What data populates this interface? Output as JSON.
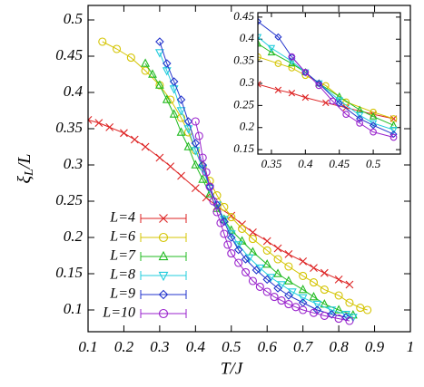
{
  "chart_data": [
    {
      "type": "line",
      "xlabel": "T/J",
      "ylabel": [
        "ξ",
        "L",
        "/L"
      ],
      "xlim": [
        0.1,
        1
      ],
      "ylim": [
        0.07,
        0.52
      ],
      "xticks": [
        0.1,
        0.2,
        0.3,
        0.4,
        0.5,
        0.6,
        0.7,
        0.8,
        0.9,
        1
      ],
      "yticks": [
        0.1,
        0.15,
        0.2,
        0.25,
        0.3,
        0.35,
        0.4,
        0.45,
        0.5
      ],
      "legend": "lower left",
      "series": [
        {
          "name": "L=4",
          "color": "#dd2222",
          "marker": "x",
          "x": [
            0.1,
            0.13,
            0.16,
            0.2,
            0.23,
            0.26,
            0.3,
            0.33,
            0.36,
            0.4,
            0.43,
            0.46,
            0.5,
            0.53,
            0.56,
            0.6,
            0.63,
            0.66,
            0.7,
            0.73,
            0.76,
            0.8,
            0.83
          ],
          "values": [
            0.362,
            0.358,
            0.352,
            0.344,
            0.335,
            0.325,
            0.31,
            0.298,
            0.285,
            0.268,
            0.255,
            0.243,
            0.23,
            0.218,
            0.207,
            0.195,
            0.185,
            0.177,
            0.167,
            0.158,
            0.151,
            0.142,
            0.135
          ]
        },
        {
          "name": "L=6",
          "color": "#d4c400",
          "marker": "circle",
          "x": [
            0.14,
            0.18,
            0.22,
            0.26,
            0.3,
            0.33,
            0.36,
            0.38,
            0.4,
            0.42,
            0.44,
            0.46,
            0.48,
            0.5,
            0.53,
            0.56,
            0.6,
            0.63,
            0.66,
            0.7,
            0.73,
            0.76,
            0.8,
            0.83,
            0.86,
            0.88
          ],
          "values": [
            0.47,
            0.46,
            0.448,
            0.43,
            0.41,
            0.39,
            0.365,
            0.345,
            0.32,
            0.298,
            0.278,
            0.258,
            0.242,
            0.228,
            0.212,
            0.198,
            0.182,
            0.17,
            0.16,
            0.147,
            0.138,
            0.128,
            0.12,
            0.11,
            0.103,
            0.1
          ]
        },
        {
          "name": "L=7",
          "color": "#22bb22",
          "marker": "triangle-up",
          "x": [
            0.26,
            0.28,
            0.3,
            0.32,
            0.34,
            0.36,
            0.38,
            0.4,
            0.42,
            0.44,
            0.46,
            0.48,
            0.5,
            0.53,
            0.56,
            0.6,
            0.63,
            0.66,
            0.7,
            0.73,
            0.76,
            0.8,
            0.84
          ],
          "values": [
            0.44,
            0.425,
            0.41,
            0.39,
            0.37,
            0.345,
            0.325,
            0.3,
            0.28,
            0.26,
            0.24,
            0.225,
            0.21,
            0.195,
            0.18,
            0.163,
            0.15,
            0.14,
            0.128,
            0.118,
            0.108,
            0.1,
            0.093
          ]
        },
        {
          "name": "L=8",
          "color": "#22ccdd",
          "marker": "triangle-down",
          "x": [
            0.3,
            0.32,
            0.34,
            0.36,
            0.38,
            0.4,
            0.42,
            0.44,
            0.46,
            0.48,
            0.5,
            0.52,
            0.55,
            0.58,
            0.61,
            0.64,
            0.67,
            0.7,
            0.74,
            0.78,
            0.82,
            0.84
          ],
          "values": [
            0.455,
            0.43,
            0.405,
            0.375,
            0.35,
            0.32,
            0.295,
            0.268,
            0.245,
            0.225,
            0.205,
            0.19,
            0.172,
            0.158,
            0.145,
            0.135,
            0.125,
            0.117,
            0.108,
            0.1,
            0.094,
            0.09
          ]
        },
        {
          "name": "L=9",
          "color": "#2233cc",
          "marker": "diamond",
          "x": [
            0.3,
            0.32,
            0.34,
            0.36,
            0.38,
            0.4,
            0.42,
            0.44,
            0.46,
            0.48,
            0.5,
            0.52,
            0.54,
            0.57,
            0.6,
            0.63,
            0.66,
            0.7,
            0.74,
            0.78,
            0.82
          ],
          "values": [
            0.47,
            0.44,
            0.415,
            0.39,
            0.36,
            0.33,
            0.3,
            0.27,
            0.245,
            0.222,
            0.2,
            0.183,
            0.17,
            0.155,
            0.142,
            0.13,
            0.12,
            0.11,
            0.1,
            0.094,
            0.09
          ]
        },
        {
          "name": "L=10",
          "color": "#9922cc",
          "marker": "circle",
          "x": [
            0.4,
            0.41,
            0.42,
            0.43,
            0.44,
            0.45,
            0.46,
            0.47,
            0.48,
            0.49,
            0.5,
            0.52,
            0.54,
            0.56,
            0.58,
            0.6,
            0.62,
            0.64,
            0.66,
            0.68,
            0.7,
            0.73,
            0.76,
            0.8,
            0.83
          ],
          "values": [
            0.36,
            0.34,
            0.31,
            0.29,
            0.27,
            0.25,
            0.235,
            0.22,
            0.205,
            0.19,
            0.178,
            0.165,
            0.152,
            0.14,
            0.132,
            0.125,
            0.118,
            0.113,
            0.108,
            0.104,
            0.1,
            0.096,
            0.092,
            0.088,
            0.085
          ]
        }
      ]
    },
    {
      "type": "line",
      "xlim": [
        0.33,
        0.54
      ],
      "ylim": [
        0.14,
        0.46
      ],
      "xticks": [
        0.35,
        0.4,
        0.45,
        0.5
      ],
      "yticks": [
        0.15,
        0.2,
        0.25,
        0.3,
        0.35,
        0.4,
        0.45
      ],
      "series": [
        {
          "color": "#dd2222",
          "marker": "x",
          "x": [
            0.33,
            0.36,
            0.38,
            0.4,
            0.43,
            0.46,
            0.5,
            0.53
          ],
          "values": [
            0.298,
            0.285,
            0.278,
            0.268,
            0.256,
            0.245,
            0.23,
            0.22
          ]
        },
        {
          "color": "#d4c400",
          "marker": "circle",
          "x": [
            0.33,
            0.36,
            0.38,
            0.4,
            0.43,
            0.46,
            0.5,
            0.53
          ],
          "values": [
            0.36,
            0.345,
            0.335,
            0.318,
            0.295,
            0.258,
            0.235,
            0.22
          ]
        },
        {
          "color": "#22bb22",
          "marker": "triangle-up",
          "x": [
            0.33,
            0.35,
            0.38,
            0.4,
            0.42,
            0.45,
            0.48,
            0.5,
            0.53
          ],
          "values": [
            0.39,
            0.37,
            0.345,
            0.325,
            0.3,
            0.27,
            0.24,
            0.225,
            0.205
          ]
        },
        {
          "color": "#22ccdd",
          "marker": "triangle-down",
          "x": [
            0.33,
            0.35,
            0.38,
            0.4,
            0.42,
            0.45,
            0.48,
            0.5,
            0.53
          ],
          "values": [
            0.405,
            0.38,
            0.35,
            0.325,
            0.3,
            0.262,
            0.228,
            0.21,
            0.195
          ]
        },
        {
          "color": "#2233cc",
          "marker": "diamond",
          "x": [
            0.33,
            0.36,
            0.38,
            0.4,
            0.42,
            0.45,
            0.48,
            0.5,
            0.53
          ],
          "values": [
            0.44,
            0.405,
            0.36,
            0.325,
            0.3,
            0.255,
            0.22,
            0.205,
            0.185
          ]
        },
        {
          "color": "#9922cc",
          "marker": "circle",
          "x": [
            0.38,
            0.4,
            0.42,
            0.44,
            0.46,
            0.48,
            0.5,
            0.53
          ],
          "values": [
            0.36,
            0.325,
            0.295,
            0.26,
            0.23,
            0.21,
            0.19,
            0.178
          ]
        }
      ]
    }
  ]
}
